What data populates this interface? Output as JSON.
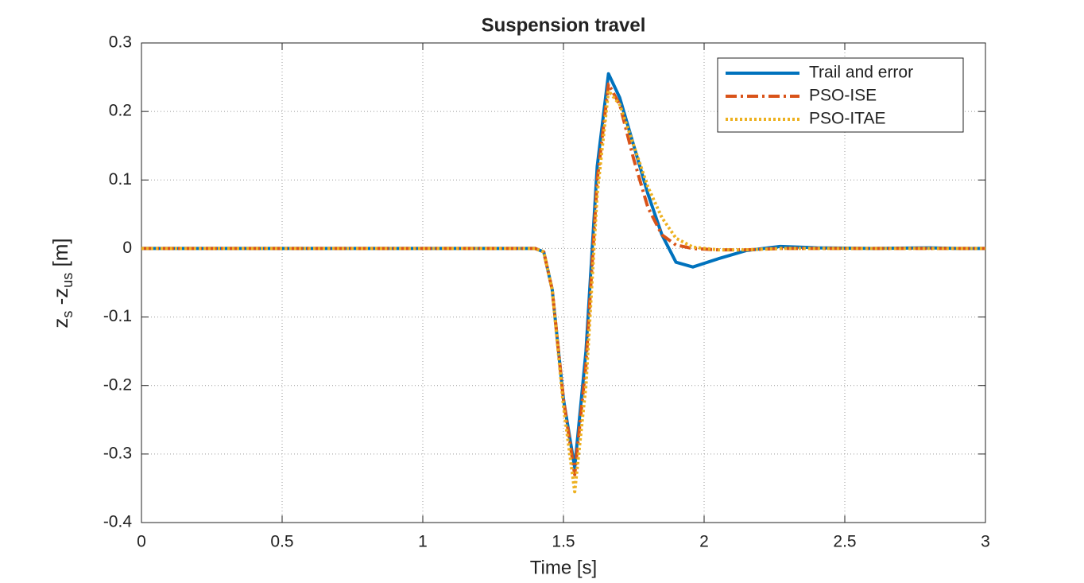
{
  "chart_data": {
    "type": "line",
    "title": "Suspension travel",
    "xlabel": "Time [s]",
    "ylabel": [
      "z",
      "s",
      " -z",
      "us",
      " [m]"
    ],
    "x": [
      0,
      0.5,
      1,
      1.4,
      1.43,
      1.46,
      1.5,
      1.54,
      1.58,
      1.62,
      1.66,
      1.7,
      1.75,
      1.8,
      1.85,
      1.9,
      1.96,
      2.05,
      2.15,
      2.27,
      2.4,
      2.6,
      2.8,
      2.9,
      3
    ],
    "series": [
      {
        "name": "Trail and error",
        "color": "#0072bd",
        "style": "solid",
        "values": [
          0,
          0,
          0,
          0,
          -0.005,
          -0.06,
          -0.22,
          -0.32,
          -0.15,
          0.12,
          0.255,
          0.22,
          0.15,
          0.08,
          0.02,
          -0.02,
          -0.027,
          -0.015,
          -0.003,
          0.003,
          0.001,
          0,
          0.001,
          0,
          0
        ]
      },
      {
        "name": "PSO-ISE",
        "color": "#d95319",
        "style": "dashdot",
        "values": [
          0,
          0,
          0,
          0,
          -0.005,
          -0.06,
          -0.22,
          -0.33,
          -0.17,
          0.1,
          0.24,
          0.21,
          0.13,
          0.06,
          0.02,
          0.005,
          0,
          -0.002,
          -0.002,
          0,
          0,
          0,
          0,
          0,
          0
        ]
      },
      {
        "name": "PSO-ITAE",
        "color": "#edb120",
        "style": "dotted",
        "values": [
          0,
          0,
          0,
          0,
          -0.005,
          -0.06,
          -0.23,
          -0.355,
          -0.2,
          0.08,
          0.23,
          0.21,
          0.15,
          0.09,
          0.045,
          0.015,
          0.002,
          -0.002,
          -0.002,
          0,
          0,
          0,
          0,
          0,
          0
        ]
      }
    ],
    "xlim": [
      0,
      3
    ],
    "xticks": [
      0,
      0.5,
      1,
      1.5,
      2,
      2.5,
      3
    ],
    "ylim": [
      -0.4,
      0.3
    ],
    "yticks": [
      0.3,
      0.2,
      0.1,
      0,
      -0.1,
      -0.2,
      -0.3,
      -0.4
    ],
    "grid": true,
    "legend": "top-right"
  }
}
